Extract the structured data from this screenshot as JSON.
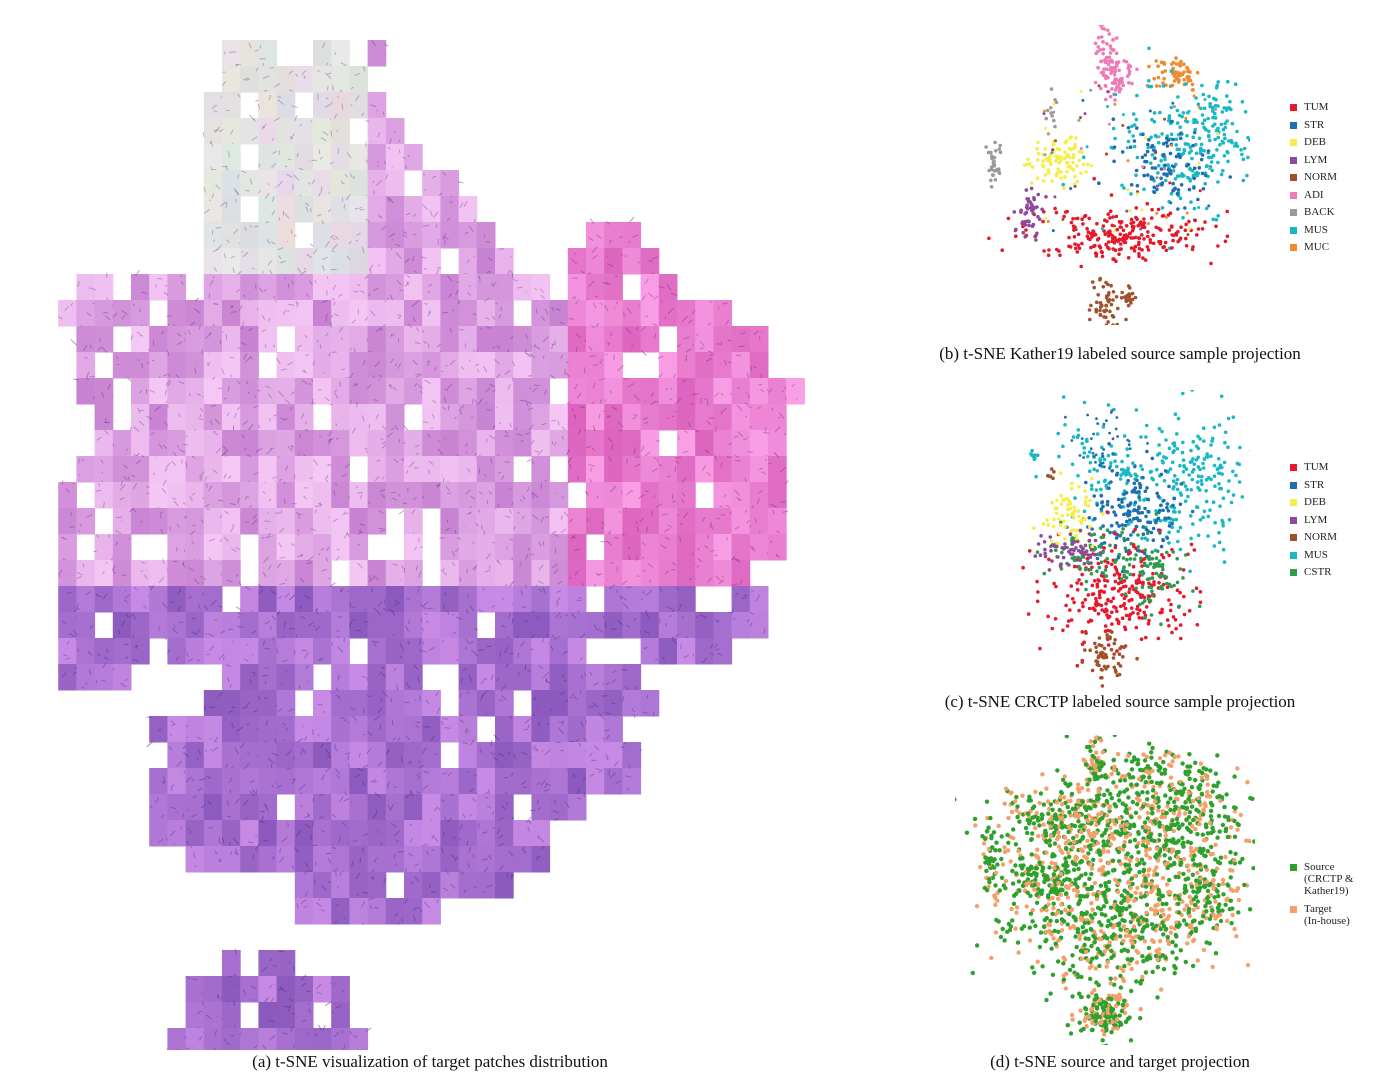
{
  "figure": {
    "panel_a": {
      "caption": "(a) t-SNE visualization of target patches distribution"
    },
    "panel_b": {
      "caption": "(b) t-SNE Kather19 labeled source sample projection",
      "legend": [
        {
          "label": "TUM",
          "color": "#e41a2c"
        },
        {
          "label": "STR",
          "color": "#1f6fb0"
        },
        {
          "label": "DEB",
          "color": "#f5ee4a"
        },
        {
          "label": "LYM",
          "color": "#8e4a9a"
        },
        {
          "label": "NORM",
          "color": "#a0522d"
        },
        {
          "label": "ADI",
          "color": "#f07ab8"
        },
        {
          "label": "BACK",
          "color": "#9a9a9a"
        },
        {
          "label": "MUS",
          "color": "#18b8c4"
        },
        {
          "label": "MUC",
          "color": "#f08a2c"
        }
      ]
    },
    "panel_c": {
      "caption": "(c) t-SNE CRCTP labeled source sample projection",
      "legend": [
        {
          "label": "TUM",
          "color": "#e41a2c"
        },
        {
          "label": "STR",
          "color": "#1f6fb0"
        },
        {
          "label": "DEB",
          "color": "#f5ee4a"
        },
        {
          "label": "LYM",
          "color": "#8e4a9a"
        },
        {
          "label": "NORM",
          "color": "#a0522d"
        },
        {
          "label": "MUS",
          "color": "#18b8c4"
        },
        {
          "label": "CSTR",
          "color": "#2e9b4e"
        }
      ]
    },
    "panel_d": {
      "caption": "(d) t-SNE source and target projection",
      "legend": [
        {
          "label": "Source\n(CRCTP &\n  Kather19)",
          "color": "#2ea02c"
        },
        {
          "label": "Target\n(In-house)",
          "color": "#f4a06a"
        }
      ]
    }
  }
}
